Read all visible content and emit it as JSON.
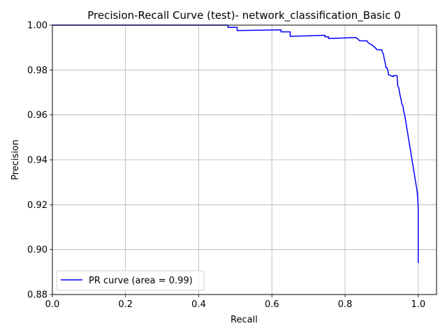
{
  "chart_data": {
    "type": "line",
    "title": "Precision-Recall Curve (test)- network_classification_Basic 0",
    "xlabel": "Recall",
    "ylabel": "Precision",
    "xlim": [
      0.0,
      1.05
    ],
    "ylim": [
      0.88,
      1.0
    ],
    "xticks": [
      0.0,
      0.2,
      0.4,
      0.6,
      0.8,
      1.0
    ],
    "xtick_labels": [
      "0.0",
      "0.2",
      "0.4",
      "0.6",
      "0.8",
      "1.0"
    ],
    "yticks": [
      0.88,
      0.9,
      0.92,
      0.94,
      0.96,
      0.98,
      1.0
    ],
    "ytick_labels": [
      "0.88",
      "0.90",
      "0.92",
      "0.94",
      "0.96",
      "0.98",
      "1.00"
    ],
    "grid": true,
    "legend_position": "lower-left",
    "series": [
      {
        "name": "PR curve (area = 0.99)",
        "color": "#0000ff",
        "x": [
          0.0,
          0.48,
          0.48,
          0.505,
          0.505,
          0.625,
          0.625,
          0.65,
          0.65,
          0.745,
          0.745,
          0.755,
          0.755,
          0.83,
          0.835,
          0.84,
          0.845,
          0.86,
          0.863,
          0.87,
          0.875,
          0.882,
          0.888,
          0.9,
          0.902,
          0.905,
          0.907,
          0.91,
          0.912,
          0.915,
          0.918,
          0.918,
          0.932,
          0.932,
          0.942,
          0.944,
          0.947,
          0.95,
          0.953,
          0.955,
          0.958,
          0.96,
          0.963,
          0.965,
          0.967,
          0.969,
          0.971,
          0.973,
          0.975,
          0.977,
          0.979,
          0.981,
          0.983,
          0.985,
          0.987,
          0.989,
          0.991,
          0.993,
          0.995,
          0.997,
          0.998,
          0.999,
          0.9995,
          1.0,
          1.0
        ],
        "y": [
          1.0,
          1.0,
          0.999,
          0.999,
          0.9976,
          0.9979,
          0.997,
          0.997,
          0.995,
          0.9955,
          0.9948,
          0.9948,
          0.994,
          0.9945,
          0.9938,
          0.993,
          0.993,
          0.993,
          0.9922,
          0.9915,
          0.991,
          0.99,
          0.989,
          0.989,
          0.988,
          0.987,
          0.985,
          0.983,
          0.981,
          0.981,
          0.979,
          0.978,
          0.977,
          0.9775,
          0.9775,
          0.973,
          0.972,
          0.969,
          0.967,
          0.965,
          0.964,
          0.962,
          0.96,
          0.958,
          0.956,
          0.954,
          0.952,
          0.95,
          0.948,
          0.946,
          0.944,
          0.942,
          0.94,
          0.938,
          0.936,
          0.934,
          0.932,
          0.93,
          0.928,
          0.926,
          0.924,
          0.922,
          0.92,
          0.918,
          0.894
        ]
      }
    ]
  }
}
